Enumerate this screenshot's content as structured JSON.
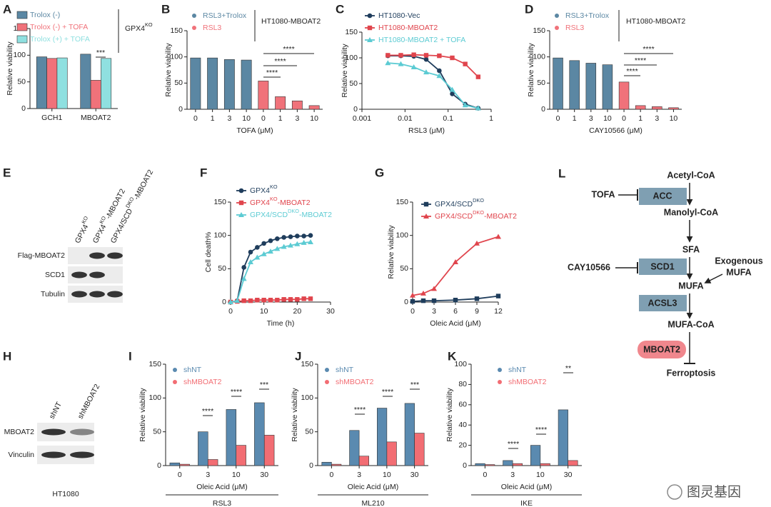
{
  "chart_data": [
    {
      "panel": "A",
      "type": "bar",
      "grouped": true,
      "ylabel": "Relative viability",
      "categories": [
        "GCH1",
        "MBOAT2"
      ],
      "series": [
        {
          "name": "Trolox (-)",
          "color": "#5b87a3",
          "values": [
            97,
            102
          ]
        },
        {
          "name": "Trolox (-) + TOFA",
          "color": "#f0727a",
          "values": [
            94,
            53
          ]
        },
        {
          "name": "Trolox (+) + TOFA",
          "color": "#8fe0e0",
          "values": [
            95,
            94
          ]
        }
      ],
      "legend": "top-left",
      "legend_title": [
        "GPX4",
        "KO"
      ],
      "annotations": [
        "***"
      ],
      "ylim": [
        0,
        150
      ],
      "yticks": [
        0,
        50,
        100,
        150
      ]
    },
    {
      "panel": "B",
      "type": "bar",
      "ylabel": "Relative viability",
      "xlabel": "TOFA (μM)",
      "categories": [
        "0",
        "1",
        "3",
        "10",
        "0",
        "1",
        "3",
        "10"
      ],
      "series": [
        {
          "name": "RSL3+Trolox",
          "color": "#5b87a3",
          "values": [
            98,
            98,
            95,
            94,
            null,
            null,
            null,
            null
          ]
        },
        {
          "name": "RSL3",
          "color": "#f0727a",
          "values": [
            null,
            null,
            null,
            null,
            54,
            24,
            16,
            7
          ]
        }
      ],
      "legend": "top-left",
      "legend_title": [
        "HT1080-MBOAT2"
      ],
      "annotations": [
        "****",
        "****",
        "****"
      ],
      "ylim": [
        0,
        150
      ],
      "yticks": [
        0,
        50,
        100,
        150
      ]
    },
    {
      "panel": "C",
      "type": "line",
      "xscale": "log",
      "ylabel": "Relative viability",
      "xlabel": "RSL3 (μM)",
      "x": [
        0.004,
        0.008,
        0.016,
        0.031,
        0.0625,
        0.125,
        0.25,
        0.5
      ],
      "series": [
        {
          "name": "HT1080-Vec",
          "color": "#1f3d5c",
          "marker": "circle",
          "values": [
            104,
            104,
            103,
            97,
            75,
            30,
            10,
            2
          ]
        },
        {
          "name": "HT1080-MBOAT2",
          "color": "#e0454d",
          "marker": "square",
          "values": [
            105,
            105,
            106,
            105,
            104,
            100,
            88,
            63
          ]
        },
        {
          "name": "HT1080-MBOAT2 + TOFA",
          "color": "#5ccbd3",
          "marker": "triangle",
          "values": [
            90,
            88,
            82,
            72,
            65,
            38,
            8,
            2
          ]
        }
      ],
      "legend": "top-left",
      "xlim": [
        0.001,
        1
      ],
      "xticks": [
        0.001,
        0.01,
        0.1,
        1
      ],
      "ylim": [
        0,
        150
      ],
      "yticks": [
        0,
        50,
        100,
        150
      ]
    },
    {
      "panel": "D",
      "type": "bar",
      "ylabel": "Relative viability",
      "xlabel": "CAY10566 (μM)",
      "categories": [
        "0",
        "1",
        "3",
        "10",
        "0",
        "1",
        "3",
        "10"
      ],
      "series": [
        {
          "name": "RSL3+Trolox",
          "color": "#5b87a3",
          "values": [
            98,
            93,
            88,
            85,
            null,
            null,
            null,
            null
          ]
        },
        {
          "name": "RSL3",
          "color": "#f0727a",
          "values": [
            null,
            null,
            null,
            null,
            52,
            7,
            5,
            3
          ]
        }
      ],
      "legend": "top-left",
      "legend_title": [
        "HT1080-MBOAT2"
      ],
      "annotations": [
        "****",
        "****",
        "****"
      ],
      "ylim": [
        0,
        150
      ],
      "yticks": [
        0,
        50,
        100,
        150
      ]
    },
    {
      "panel": "F",
      "type": "line",
      "ylabel": "Cell death%",
      "xlabel": "Time (h)",
      "x": [
        0,
        2,
        4,
        6,
        8,
        10,
        12,
        14,
        16,
        18,
        20,
        22,
        24
      ],
      "series": [
        {
          "name": [
            "GPX4",
            "KO"
          ],
          "color": "#1f3d5c",
          "marker": "circle",
          "values": [
            0,
            2,
            52,
            75,
            82,
            88,
            92,
            95,
            97,
            98,
            99,
            99,
            100
          ]
        },
        {
          "name": [
            "GPX4",
            "KO",
            "-MBOAT2"
          ],
          "color": "#e0454d",
          "marker": "square",
          "values": [
            0,
            1,
            2,
            2,
            3,
            3,
            3,
            3,
            4,
            4,
            4,
            5,
            5
          ]
        },
        {
          "name": [
            "GPX4/SCD",
            "DKO",
            "-MBOAT2"
          ],
          "color": "#5ccbd3",
          "marker": "triangle",
          "values": [
            0,
            2,
            35,
            60,
            67,
            72,
            76,
            80,
            83,
            85,
            87,
            89,
            90
          ]
        }
      ],
      "legend": "top-left",
      "xlim": [
        0,
        30
      ],
      "xticks": [
        0,
        10,
        20,
        30
      ],
      "ylim": [
        0,
        150
      ],
      "yticks": [
        0,
        50,
        100,
        150
      ]
    },
    {
      "panel": "G",
      "type": "line",
      "ylabel": "Relative viability",
      "xlabel": "Oleic Acid (μM)",
      "x": [
        0,
        1.5,
        3,
        6,
        9,
        12
      ],
      "series": [
        {
          "name": [
            "GPX4/SCD",
            "DKO"
          ],
          "color": "#1f3d5c",
          "marker": "square",
          "values": [
            1,
            2,
            2,
            3,
            5,
            9
          ]
        },
        {
          "name": [
            "GPX4/SCD",
            "DKO",
            "-MBOAT2"
          ],
          "color": "#e0454d",
          "marker": "triangle",
          "values": [
            10,
            13,
            20,
            60,
            88,
            98
          ]
        }
      ],
      "legend": "top-left",
      "xlim": [
        0,
        12
      ],
      "xticks": [
        0,
        3,
        6,
        9,
        12
      ],
      "ylim": [
        0,
        150
      ],
      "yticks": [
        0,
        50,
        100,
        150
      ]
    },
    {
      "panel": "I",
      "type": "bar",
      "grouped": true,
      "ylabel": "Relative viability",
      "xlabel": "Oleic Acid (μM)",
      "group_label": "RSL3",
      "categories": [
        "0",
        "3",
        "10",
        "30"
      ],
      "series": [
        {
          "name": "shNT",
          "color": "#5a8ab0",
          "values": [
            4,
            50,
            83,
            93
          ]
        },
        {
          "name": "shMBOAT2",
          "color": "#f26d73",
          "values": [
            2,
            9,
            30,
            45
          ]
        }
      ],
      "legend": "top-left",
      "annotations": [
        "****",
        "****",
        "***"
      ],
      "ylim": [
        0,
        150
      ],
      "yticks": [
        0,
        50,
        100,
        150
      ]
    },
    {
      "panel": "J",
      "type": "bar",
      "grouped": true,
      "ylabel": "Relative viability",
      "xlabel": "Oleic Acid (μM)",
      "group_label": "ML210",
      "categories": [
        "0",
        "3",
        "10",
        "30"
      ],
      "series": [
        {
          "name": "shNT",
          "color": "#5a8ab0",
          "values": [
            5,
            52,
            85,
            92
          ]
        },
        {
          "name": "shMBOAT2",
          "color": "#f26d73",
          "values": [
            2,
            14,
            35,
            48
          ]
        }
      ],
      "legend": "top-left",
      "annotations": [
        "****",
        "****",
        "***"
      ],
      "ylim": [
        0,
        150
      ],
      "yticks": [
        0,
        50,
        100,
        150
      ]
    },
    {
      "panel": "K",
      "type": "bar",
      "grouped": true,
      "ylabel": "Relative viability",
      "xlabel": "Oleic Acid (μM)",
      "group_label": "IKE",
      "categories": [
        "0",
        "3",
        "10",
        "30"
      ],
      "series": [
        {
          "name": "shNT",
          "color": "#5a8ab0",
          "values": [
            2,
            5,
            20,
            55
          ]
        },
        {
          "name": "shMBOAT2",
          "color": "#f26d73",
          "values": [
            1,
            2,
            2,
            5
          ]
        }
      ],
      "legend": "top-left",
      "annotations": [
        "****",
        "****",
        "**"
      ],
      "ylim": [
        0,
        100
      ],
      "yticks": [
        0,
        20,
        40,
        60,
        80,
        100
      ]
    }
  ],
  "blots": [
    {
      "panel": "E",
      "columns": [
        [
          "GPX4",
          "KO"
        ],
        [
          "GPX4",
          "KO",
          "-MBOAT2"
        ],
        [
          "GPX4/SCD",
          "DKO",
          "-MBOAT2"
        ]
      ],
      "rows": [
        "Flag-MBOAT2",
        "SCD1",
        "Tubulin"
      ]
    },
    {
      "panel": "H",
      "columns": [
        [
          "shNT"
        ],
        [
          "shMBOAT2"
        ]
      ],
      "rows": [
        "MBOAT2",
        "Vinculin"
      ],
      "caption": "HT1080"
    }
  ],
  "diagram": {
    "panel": "L",
    "acetyl_coa": "Acetyl-CoA",
    "acc": "ACC",
    "tofa": "TOFA",
    "manolyl_coa": "Manolyl-CoA",
    "sfa": "SFA",
    "scd1": "SCD1",
    "cay10566": "CAY10566",
    "exogenous": [
      "Exogenous",
      "MUFA"
    ],
    "mufa": "MUFA",
    "acsl3": "ACSL3",
    "mufa_coa": "MUFA-CoA",
    "mboat2": "MBOAT2",
    "ferroptosis": "Ferroptosis"
  },
  "watermark": "图灵基因"
}
